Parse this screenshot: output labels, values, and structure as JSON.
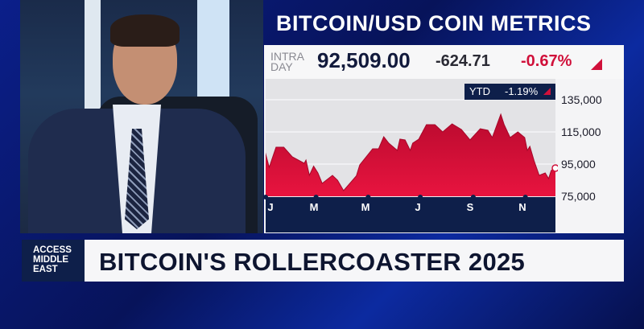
{
  "graphic_title": "BITCOIN/USD COIN METRICS",
  "quote": {
    "label_line1": "INTRA",
    "label_line2": "DAY",
    "price": "92,509.00",
    "change": "-624.71",
    "change_pct": "-0.67%",
    "direction": "down"
  },
  "ytd": {
    "label": "YTD",
    "value": "-1.19%"
  },
  "lower_third": {
    "badge": [
      "ACCESS",
      "MIDDLE",
      "EAST"
    ],
    "headline": "BITCOIN'S ROLLERCOASTER 2025"
  },
  "colors": {
    "accent_red": "#d0103a",
    "navy": "#0e1f4a",
    "background_blue": "#0b1f8a"
  },
  "chart_data": {
    "type": "area",
    "title": "",
    "xlabel": "",
    "ylabel": "",
    "ylim": [
      75000,
      135000
    ],
    "xlim": [
      "2025-01-01",
      "2025-12-09"
    ],
    "yticks": [
      "135,000",
      "115,000",
      "95,000",
      "75,000"
    ],
    "ytick_values": [
      135000,
      115000,
      95000,
      75000
    ],
    "xticks": [
      "J",
      "M",
      "M",
      "J",
      "S",
      "N"
    ],
    "xtick_dates": [
      "2025-01-01",
      "2025-03-01",
      "2025-05-01",
      "2025-07-01",
      "2025-09-01",
      "2025-11-01"
    ],
    "grid": true,
    "series": [
      {
        "color": "#d0103a",
        "points": [
          [
            "2025-01-03",
            103000
          ],
          [
            "2025-01-08",
            93000
          ],
          [
            "2025-01-16",
            105500
          ],
          [
            "2025-01-25",
            105500
          ],
          [
            "2025-02-04",
            99500
          ],
          [
            "2025-02-18",
            95500
          ],
          [
            "2025-02-20",
            97500
          ],
          [
            "2025-02-24",
            88000
          ],
          [
            "2025-03-01",
            93700
          ],
          [
            "2025-03-06",
            89500
          ],
          [
            "2025-03-11",
            83000
          ],
          [
            "2025-03-23",
            88000
          ],
          [
            "2025-03-29",
            85000
          ],
          [
            "2025-04-05",
            78500
          ],
          [
            "2025-04-20",
            87700
          ],
          [
            "2025-04-24",
            94500
          ],
          [
            "2025-05-09",
            104500
          ],
          [
            "2025-05-16",
            104500
          ],
          [
            "2025-05-22",
            112000
          ],
          [
            "2025-05-28",
            108000
          ],
          [
            "2025-06-07",
            103500
          ],
          [
            "2025-06-10",
            110500
          ],
          [
            "2025-06-16",
            110000
          ],
          [
            "2025-06-22",
            103500
          ],
          [
            "2025-06-25",
            108000
          ],
          [
            "2025-07-02",
            110500
          ],
          [
            "2025-07-11",
            119500
          ],
          [
            "2025-07-21",
            119500
          ],
          [
            "2025-07-30",
            115000
          ],
          [
            "2025-08-10",
            120000
          ],
          [
            "2025-08-21",
            116500
          ],
          [
            "2025-08-31",
            110000
          ],
          [
            "2025-09-12",
            117000
          ],
          [
            "2025-09-21",
            116000
          ],
          [
            "2025-09-26",
            111500
          ],
          [
            "2025-10-06",
            126000
          ],
          [
            "2025-10-10",
            119500
          ],
          [
            "2025-10-17",
            111500
          ],
          [
            "2025-10-26",
            115000
          ],
          [
            "2025-11-03",
            111500
          ],
          [
            "2025-11-06",
            103500
          ],
          [
            "2025-11-09",
            106000
          ],
          [
            "2025-11-14",
            97000
          ],
          [
            "2025-11-20",
            88000
          ],
          [
            "2025-11-27",
            89500
          ],
          [
            "2025-12-01",
            86000
          ],
          [
            "2025-12-04",
            91000
          ],
          [
            "2025-12-09",
            92500
          ]
        ]
      }
    ]
  }
}
